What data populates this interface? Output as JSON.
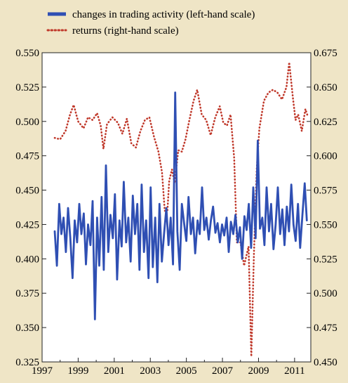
{
  "chart_data": {
    "type": "line",
    "legend_position": "top",
    "grid": false,
    "series": [
      {
        "name": "changes in trading activity (left-hand scale)",
        "axis": "left",
        "color": "#2f4fb3",
        "style": "solid",
        "x": [
          1997.7,
          1997.82,
          1997.95,
          1998.07,
          1998.19,
          1998.32,
          1998.44,
          1998.56,
          1998.69,
          1998.81,
          1998.94,
          1999.06,
          1999.18,
          1999.31,
          1999.43,
          1999.55,
          1999.68,
          1999.8,
          1999.93,
          2000.05,
          2000.17,
          2000.3,
          2000.42,
          2000.54,
          2000.67,
          2000.79,
          2000.92,
          2001.04,
          2001.16,
          2001.29,
          2001.41,
          2001.53,
          2001.66,
          2001.78,
          2001.91,
          2002.03,
          2002.15,
          2002.28,
          2002.4,
          2002.52,
          2002.65,
          2002.77,
          2002.9,
          2003.02,
          2003.14,
          2003.27,
          2003.39,
          2003.51,
          2003.64,
          2003.76,
          2003.89,
          2004.01,
          2004.13,
          2004.26,
          2004.38,
          2004.5,
          2004.63,
          2004.75,
          2004.88,
          2005.0,
          2005.12,
          2005.25,
          2005.37,
          2005.49,
          2005.62,
          2005.74,
          2005.87,
          2005.99,
          2006.11,
          2006.24,
          2006.36,
          2006.48,
          2006.61,
          2006.73,
          2006.86,
          2006.98,
          2007.1,
          2007.23,
          2007.35,
          2007.47,
          2007.6,
          2007.72,
          2007.85,
          2007.97,
          2008.09,
          2008.22,
          2008.34,
          2008.46,
          2008.59,
          2008.71,
          2008.84,
          2008.96,
          2009.08,
          2009.21,
          2009.33,
          2009.45,
          2009.58,
          2009.7,
          2009.83,
          2009.95,
          2010.07,
          2010.2,
          2010.32,
          2010.44,
          2010.57,
          2010.69,
          2010.82,
          2010.94,
          2011.06,
          2011.19,
          2011.31,
          2011.43,
          2011.56,
          2011.68
        ],
        "values": [
          0.42,
          0.395,
          0.44,
          0.418,
          0.43,
          0.405,
          0.437,
          0.416,
          0.386,
          0.428,
          0.412,
          0.44,
          0.418,
          0.433,
          0.396,
          0.425,
          0.41,
          0.442,
          0.356,
          0.43,
          0.395,
          0.445,
          0.392,
          0.468,
          0.405,
          0.432,
          0.415,
          0.447,
          0.385,
          0.428,
          0.409,
          0.456,
          0.412,
          0.43,
          0.398,
          0.446,
          0.418,
          0.44,
          0.392,
          0.454,
          0.405,
          0.428,
          0.386,
          0.452,
          0.394,
          0.43,
          0.383,
          0.44,
          0.398,
          0.418,
          0.437,
          0.41,
          0.43,
          0.396,
          0.521,
          0.42,
          0.392,
          0.44,
          0.425,
          0.413,
          0.445,
          0.418,
          0.43,
          0.404,
          0.428,
          0.418,
          0.452,
          0.421,
          0.43,
          0.414,
          0.428,
          0.438,
          0.419,
          0.426,
          0.412,
          0.425,
          0.417,
          0.43,
          0.405,
          0.427,
          0.418,
          0.432,
          0.412,
          0.423,
          0.4,
          0.431,
          0.421,
          0.44,
          0.408,
          0.452,
          0.415,
          0.486,
          0.422,
          0.43,
          0.41,
          0.452,
          0.42,
          0.44,
          0.407,
          0.425,
          0.452,
          0.418,
          0.436,
          0.41,
          0.438,
          0.42,
          0.454,
          0.425,
          0.413,
          0.44,
          0.408,
          0.431,
          0.455,
          0.428
        ]
      },
      {
        "name": "returns (right-hand scale)",
        "axis": "right",
        "color": "#c0392b",
        "style": "dotted",
        "x": [
          1997.7,
          1998.0,
          1998.3,
          1998.55,
          1998.75,
          1999.0,
          1999.3,
          1999.55,
          1999.8,
          2000.05,
          2000.25,
          2000.4,
          2000.6,
          2000.9,
          2001.2,
          2001.45,
          2001.7,
          2001.95,
          2002.2,
          2002.45,
          2002.7,
          2002.95,
          2003.2,
          2003.45,
          2003.65,
          2003.8,
          2003.95,
          2004.05,
          2004.2,
          2004.35,
          2004.55,
          2004.75,
          2004.95,
          2005.15,
          2005.4,
          2005.6,
          2005.85,
          2006.1,
          2006.35,
          2006.6,
          2006.85,
          2007.05,
          2007.25,
          2007.45,
          2007.65,
          2007.8,
          2008.0,
          2008.2,
          2008.45,
          2008.6,
          2008.75,
          2008.9,
          2009.05,
          2009.3,
          2009.55,
          2009.8,
          2010.05,
          2010.3,
          2010.55,
          2010.7,
          2010.9,
          2011.05,
          2011.2,
          2011.4,
          2011.6,
          2011.75
        ],
        "values": [
          0.613,
          0.612,
          0.618,
          0.63,
          0.637,
          0.625,
          0.62,
          0.628,
          0.626,
          0.631,
          0.622,
          0.605,
          0.623,
          0.628,
          0.624,
          0.616,
          0.627,
          0.609,
          0.606,
          0.618,
          0.626,
          0.628,
          0.614,
          0.603,
          0.588,
          0.56,
          0.56,
          0.582,
          0.59,
          0.58,
          0.604,
          0.603,
          0.612,
          0.625,
          0.64,
          0.648,
          0.63,
          0.626,
          0.615,
          0.628,
          0.636,
          0.624,
          0.622,
          0.63,
          0.598,
          0.537,
          0.537,
          0.52,
          0.534,
          0.454,
          0.53,
          0.59,
          0.62,
          0.64,
          0.646,
          0.648,
          0.646,
          0.641,
          0.65,
          0.668,
          0.643,
          0.626,
          0.63,
          0.618,
          0.634,
          0.628
        ]
      }
    ],
    "xlim": [
      1997,
      2011.9
    ],
    "ylim_left": [
      0.325,
      0.55
    ],
    "ylim_right": [
      0.45,
      0.675
    ],
    "x_ticks": [
      1997,
      1999,
      2001,
      2003,
      2005,
      2007,
      2009,
      2011
    ],
    "x_tick_labels": [
      "1997",
      "1999",
      "2001",
      "2003",
      "2005",
      "2007",
      "2009",
      "2011"
    ],
    "y_left_ticks": [
      0.325,
      0.35,
      0.375,
      0.4,
      0.425,
      0.45,
      0.475,
      0.5,
      0.525,
      0.55
    ],
    "y_left_tick_labels": [
      "0.325",
      "0.350",
      "0.375",
      "0.400",
      "0.425",
      "0.450",
      "0.475",
      "0.500",
      "0.525",
      "0.550"
    ],
    "y_right_ticks": [
      0.45,
      0.475,
      0.5,
      0.525,
      0.55,
      0.575,
      0.6,
      0.625,
      0.65,
      0.675
    ],
    "y_right_tick_labels": [
      "0.450",
      "0.475",
      "0.500",
      "0.525",
      "0.550",
      "0.575",
      "0.600",
      "0.625",
      "0.650",
      "0.675"
    ]
  },
  "legend": {
    "items": [
      {
        "label": "changes in trading activity (left-hand scale)"
      },
      {
        "label": "returns (right-hand scale)"
      }
    ]
  }
}
